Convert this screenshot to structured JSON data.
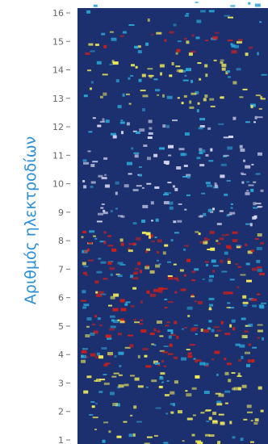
{
  "chart_data": {
    "type": "heatmap",
    "ylabel": "Αριθμός ηλεκτροδίων",
    "y_ticks": [
      "1",
      "2",
      "3",
      "4",
      "5",
      "6",
      "7",
      "8",
      "9",
      "10",
      "11",
      "12",
      "13",
      "14",
      "15",
      "16"
    ],
    "ylim": [
      1,
      16
    ],
    "grid": false,
    "legend": "none",
    "colors": {
      "background": "#1c2f6e",
      "low": "#2aa6d6",
      "mid": "#f1ea5a",
      "high": "#cc1f1a",
      "pale": "#d8d8ee"
    },
    "rows": [
      {
        "electrode": 1,
        "activity": 0.25,
        "color": "mid"
      },
      {
        "electrode": 2,
        "activity": 0.45,
        "color": "mid"
      },
      {
        "electrode": 3,
        "activity": 0.55,
        "color": "mid"
      },
      {
        "electrode": 4,
        "activity": 0.75,
        "color": "high"
      },
      {
        "electrode": 5,
        "activity": 0.85,
        "color": "high"
      },
      {
        "electrode": 6,
        "activity": 0.65,
        "color": "high"
      },
      {
        "electrode": 7,
        "activity": 0.8,
        "color": "high"
      },
      {
        "electrode": 8,
        "activity": 0.9,
        "color": "high"
      },
      {
        "electrode": 9,
        "activity": 0.5,
        "color": "pale"
      },
      {
        "electrode": 10,
        "activity": 0.55,
        "color": "pale"
      },
      {
        "electrode": 11,
        "activity": 0.45,
        "color": "pale"
      },
      {
        "electrode": 12,
        "activity": 0.35,
        "color": "pale"
      },
      {
        "electrode": 13,
        "activity": 0.4,
        "color": "mid"
      },
      {
        "electrode": 14,
        "activity": 0.5,
        "color": "mid"
      },
      {
        "electrode": 15,
        "activity": 0.45,
        "color": "high"
      },
      {
        "electrode": 16,
        "activity": 0.1,
        "color": "low"
      }
    ]
  }
}
